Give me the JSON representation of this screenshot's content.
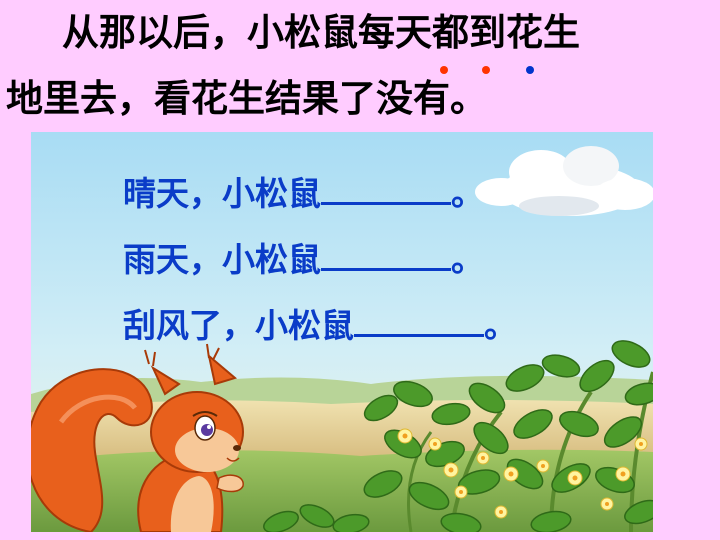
{
  "story": {
    "line1": "从那以后，小松鼠每天都到花生",
    "line2": "地里去，看花生结果了没有。"
  },
  "questions": [
    {
      "prefix": "晴天，小松鼠",
      "suffix": "。"
    },
    {
      "prefix": "雨天，小松鼠",
      "suffix": "。"
    },
    {
      "prefix": "刮风了，小松鼠",
      "suffix": "。"
    }
  ],
  "colors": {
    "background": "#ffccff",
    "question_text": "#0a3cc8",
    "dot_red": "#ff3300",
    "dot_blue": "#0033cc"
  },
  "illustration": {
    "elements": [
      "cloud",
      "squirrel",
      "peanut-plants",
      "flowers",
      "grassland",
      "sky"
    ]
  }
}
